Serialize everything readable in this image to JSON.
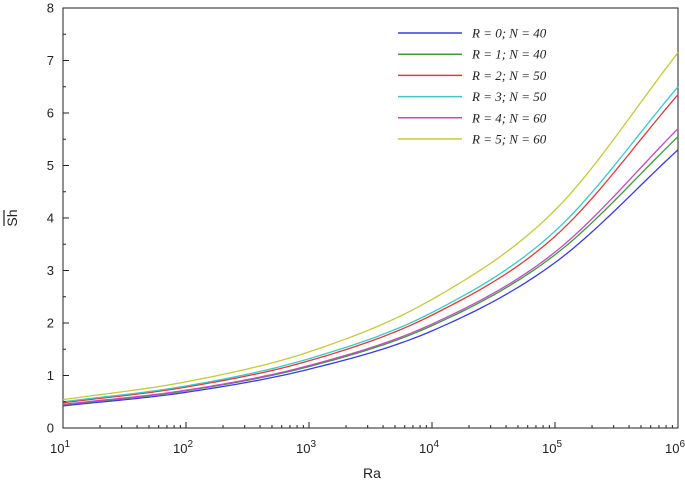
{
  "chart_data": {
    "type": "line",
    "xlabel": "Ra",
    "ylabel": "Sh",
    "ylabel_overline": true,
    "xscale": "log",
    "xlim": [
      10,
      1000000
    ],
    "ylim": [
      0,
      8
    ],
    "x_ticks": [
      {
        "value": 10,
        "base": "10",
        "exp": "1"
      },
      {
        "value": 100,
        "base": "10",
        "exp": "2"
      },
      {
        "value": 1000,
        "base": "10",
        "exp": "3"
      },
      {
        "value": 10000,
        "base": "10",
        "exp": "4"
      },
      {
        "value": 100000,
        "base": "10",
        "exp": "5"
      },
      {
        "value": 1000000,
        "base": "10",
        "exp": "6"
      }
    ],
    "y_ticks": [
      "0",
      "1",
      "2",
      "3",
      "4",
      "5",
      "6",
      "7",
      "8"
    ],
    "grid": false,
    "legend_position": "top-right",
    "series": [
      {
        "name": "R = 0; N = 40",
        "color": "#3a3ae0",
        "x": [
          10,
          100,
          1000,
          10000,
          100000,
          1000000
        ],
        "y": [
          0.42,
          0.68,
          1.12,
          1.85,
          3.15,
          5.3
        ]
      },
      {
        "name": "R = 1; N = 40",
        "color": "#3d9a3d",
        "x": [
          10,
          100,
          1000,
          10000,
          100000,
          1000000
        ],
        "y": [
          0.44,
          0.71,
          1.17,
          1.95,
          3.3,
          5.55
        ]
      },
      {
        "name": "R = 2; N = 50",
        "color": "#e03a3a",
        "x": [
          10,
          100,
          1000,
          10000,
          100000,
          1000000
        ],
        "y": [
          0.48,
          0.78,
          1.28,
          2.15,
          3.65,
          6.35
        ]
      },
      {
        "name": "R = 3; N = 50",
        "color": "#3ac8c8",
        "x": [
          10,
          100,
          1000,
          10000,
          100000,
          1000000
        ],
        "y": [
          0.5,
          0.8,
          1.32,
          2.2,
          3.75,
          6.5
        ]
      },
      {
        "name": "R = 4; N = 60",
        "color": "#c24ac8",
        "x": [
          10,
          100,
          1000,
          10000,
          100000,
          1000000
        ],
        "y": [
          0.45,
          0.72,
          1.19,
          1.98,
          3.35,
          5.7
        ]
      },
      {
        "name": "R = 5; N = 60",
        "color": "#c8c83a",
        "x": [
          10,
          100,
          1000,
          10000,
          100000,
          1000000
        ],
        "y": [
          0.54,
          0.88,
          1.45,
          2.45,
          4.15,
          7.15
        ]
      }
    ]
  }
}
